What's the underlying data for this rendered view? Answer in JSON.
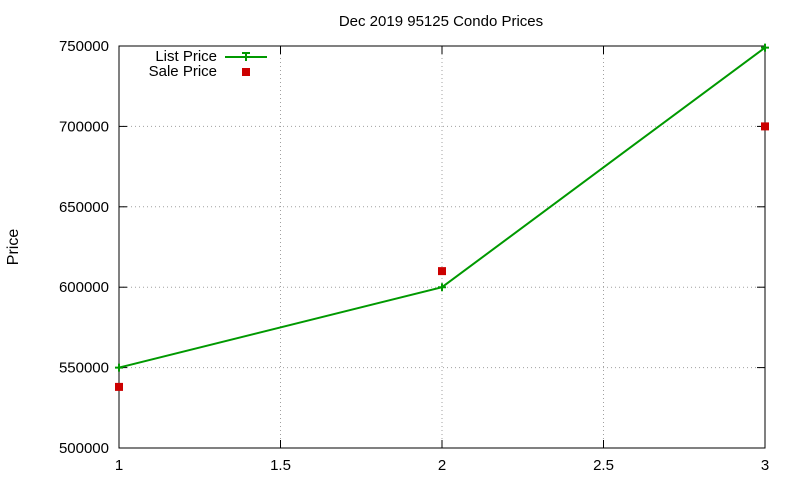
{
  "chart_data": {
    "type": "line",
    "title": "Dec 2019 95125 Condo Prices",
    "ylabel": "Price",
    "xlabel": "",
    "xlim": [
      1,
      3
    ],
    "ylim": [
      500000,
      750000
    ],
    "x_ticks": [
      "1",
      "1.5",
      "2",
      "2.5",
      "3"
    ],
    "y_ticks": [
      "500000",
      "550000",
      "600000",
      "650000",
      "700000",
      "750000"
    ],
    "grid": true,
    "legend_position": "top-left",
    "series": [
      {
        "name": "List Price",
        "style": "linespoints",
        "color": "#009900",
        "points": [
          [
            1,
            550000
          ],
          [
            2,
            600000
          ],
          [
            3,
            749000
          ]
        ]
      },
      {
        "name": "Sale Price",
        "style": "points",
        "color": "#cc0000",
        "points": [
          [
            1,
            538000
          ],
          [
            2,
            610000
          ],
          [
            3,
            700000
          ]
        ]
      }
    ]
  }
}
